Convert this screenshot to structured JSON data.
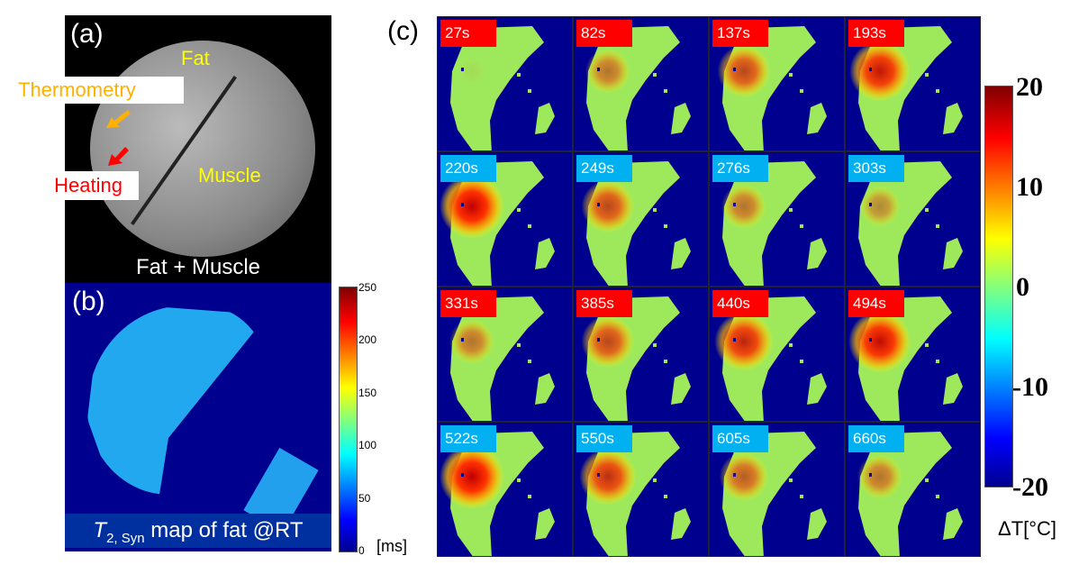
{
  "panel_a": {
    "label": "(a)",
    "fat": "Fat",
    "thermometry": "Thermometry",
    "heating": "Heating",
    "muscle": "Muscle",
    "caption": "Fat + Muscle"
  },
  "panel_b": {
    "label": "(b)",
    "caption_T": "T",
    "caption_sub": "2, Syn",
    "caption_rest": " map of fat @RT",
    "colorbar_ticks": [
      "250",
      "200",
      "150",
      "100",
      "50",
      "0"
    ],
    "unit": "[ms]"
  },
  "panel_c": {
    "label": "(c)",
    "colors": {
      "heating": "#ff0000",
      "cooling": "#00b0f0"
    },
    "frames": [
      {
        "time": "27s",
        "phase": "heating",
        "heat": 0.05
      },
      {
        "time": "82s",
        "phase": "heating",
        "heat": 0.5
      },
      {
        "time": "137s",
        "phase": "heating",
        "heat": 0.7
      },
      {
        "time": "193s",
        "phase": "heating",
        "heat": 0.9
      },
      {
        "time": "220s",
        "phase": "cooling",
        "heat": 1.0
      },
      {
        "time": "249s",
        "phase": "cooling",
        "heat": 0.7
      },
      {
        "time": "276s",
        "phase": "cooling",
        "heat": 0.5
      },
      {
        "time": "303s",
        "phase": "cooling",
        "heat": 0.4
      },
      {
        "time": "331s",
        "phase": "heating",
        "heat": 0.5
      },
      {
        "time": "385s",
        "phase": "heating",
        "heat": 0.7
      },
      {
        "time": "440s",
        "phase": "heating",
        "heat": 0.85
      },
      {
        "time": "494s",
        "phase": "heating",
        "heat": 0.95
      },
      {
        "time": "522s",
        "phase": "cooling",
        "heat": 1.0
      },
      {
        "time": "550s",
        "phase": "cooling",
        "heat": 0.8
      },
      {
        "time": "605s",
        "phase": "cooling",
        "heat": 0.6
      },
      {
        "time": "660s",
        "phase": "cooling",
        "heat": 0.5
      }
    ],
    "colorbar_ticks": [
      "20",
      "10",
      "0",
      "-10",
      "-20"
    ],
    "unit": "ΔT[°C]"
  }
}
